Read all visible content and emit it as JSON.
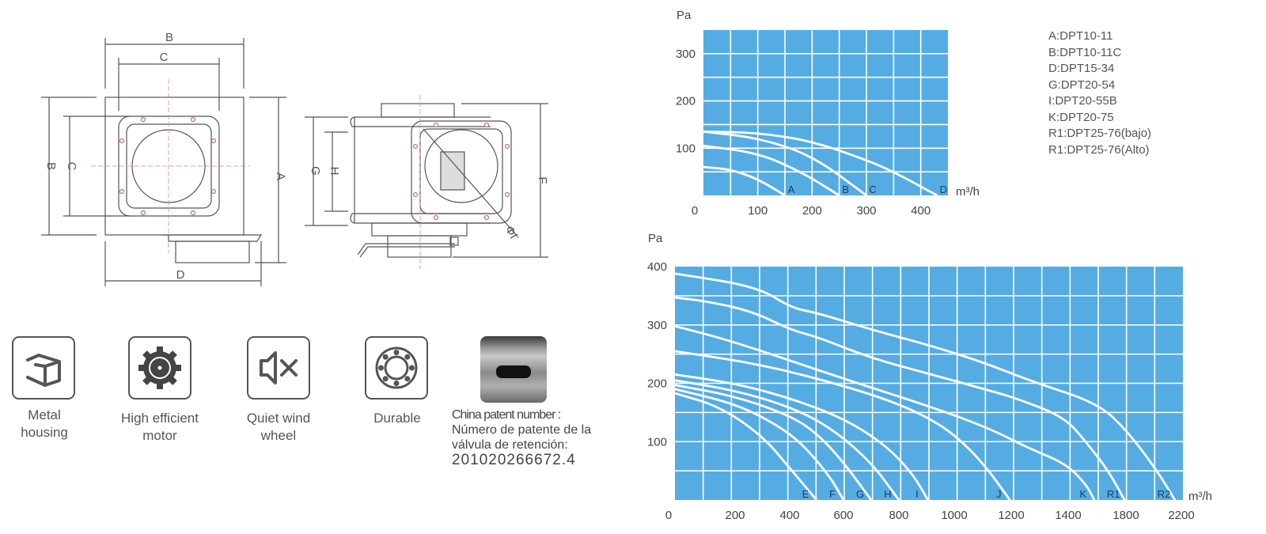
{
  "drawings": {
    "front_view": {
      "dims": {
        "top_outer": "B",
        "top_inner": "C",
        "left_outer": "B",
        "left_inner": "C",
        "right": "A",
        "bottom": "D"
      }
    },
    "side_view": {
      "dims": {
        "left_outer": "G",
        "left_inner": "H",
        "right": "F",
        "diameter": "ΦI"
      }
    }
  },
  "features": [
    {
      "label_lines": [
        "Metal",
        "housing"
      ],
      "icon": "box-icon"
    },
    {
      "label_lines": [
        "High efficient",
        "motor"
      ],
      "icon": "gear-icon"
    },
    {
      "label_lines": [
        "Quiet wind",
        "wheel"
      ],
      "icon": "speaker-mute-icon"
    },
    {
      "label_lines": [
        "Durable"
      ],
      "icon": "bearing-icon"
    }
  ],
  "patent": {
    "title": "China patent number :",
    "line1": "Número de patente de la",
    "line2": "válvula de retención:",
    "number": "201020266672.4"
  },
  "legend": [
    "A:DPT10-11",
    "B:DPT10-11C",
    "D:DPT15-34",
    "G:DPT20-54",
    "I:DPT20-55B",
    "K:DPT20-75",
    "R1:DPT25-76(bajo)",
    "R1:DPT25-76(Alto)"
  ],
  "colors": {
    "plot_bg": "#55ace2",
    "grid": "#ffffff",
    "curve": "#ffffff"
  },
  "chart_data": [
    {
      "type": "line",
      "ylabel": "Pa",
      "xlabel": "m³/h",
      "xlim": [
        0,
        450
      ],
      "ylim": [
        0,
        350
      ],
      "xticks": [
        0,
        100,
        200,
        300,
        400
      ],
      "yticks": [
        100,
        200,
        300
      ],
      "grid": true,
      "series": [
        {
          "name": "A",
          "points": [
            [
              0,
              60
            ],
            [
              50,
              55
            ],
            [
              100,
              35
            ],
            [
              150,
              0
            ]
          ]
        },
        {
          "name": "B",
          "points": [
            [
              0,
              105
            ],
            [
              100,
              90
            ],
            [
              180,
              50
            ],
            [
              250,
              0
            ]
          ]
        },
        {
          "name": "C",
          "points": [
            [
              0,
              135
            ],
            [
              100,
              122
            ],
            [
              200,
              85
            ],
            [
              300,
              0
            ]
          ]
        },
        {
          "name": "D",
          "points": [
            [
              0,
              135
            ],
            [
              100,
              133
            ],
            [
              200,
              115
            ],
            [
              300,
              75
            ],
            [
              350,
              50
            ],
            [
              430,
              0
            ]
          ]
        }
      ]
    },
    {
      "type": "line",
      "ylabel": "Pa",
      "xlabel": "m³/h",
      "xlim": [
        0,
        2250
      ],
      "ylim": [
        0,
        400
      ],
      "xticks": [
        0,
        200,
        400,
        600,
        800,
        1000,
        1200,
        1400,
        1800,
        2200
      ],
      "yticks": [
        100,
        200,
        300,
        400
      ],
      "grid": true,
      "series": [
        {
          "name": "E",
          "points": [
            [
              0,
              183
            ],
            [
              150,
              160
            ],
            [
              300,
              110
            ],
            [
              400,
              55
            ],
            [
              500,
              0
            ]
          ]
        },
        {
          "name": "F",
          "points": [
            [
              0,
              190
            ],
            [
              200,
              165
            ],
            [
              350,
              130
            ],
            [
              450,
              95
            ],
            [
              550,
              40
            ],
            [
              600,
              0
            ]
          ]
        },
        {
          "name": "G",
          "points": [
            [
              0,
              197
            ],
            [
              200,
              178
            ],
            [
              400,
              145
            ],
            [
              500,
              115
            ],
            [
              600,
              65
            ],
            [
              700,
              0
            ]
          ]
        },
        {
          "name": "H",
          "points": [
            [
              0,
              205
            ],
            [
              200,
              188
            ],
            [
              400,
              160
            ],
            [
              550,
              125
            ],
            [
              700,
              65
            ],
            [
              800,
              0
            ]
          ]
        },
        {
          "name": "I",
          "points": [
            [
              0,
              215
            ],
            [
              200,
              200
            ],
            [
              400,
              175
            ],
            [
              600,
              140
            ],
            [
              750,
              95
            ],
            [
              850,
              45
            ],
            [
              905,
              0
            ]
          ]
        },
        {
          "name": "J",
          "points": [
            [
              0,
              255
            ],
            [
              300,
              232
            ],
            [
              600,
              196
            ],
            [
              800,
              165
            ],
            [
              950,
              130
            ],
            [
              1050,
              90
            ],
            [
              1130,
              45
            ],
            [
              1195,
              0
            ]
          ]
        },
        {
          "name": "K",
          "points": [
            [
              0,
              298
            ],
            [
              193,
              272
            ],
            [
              593,
              209
            ],
            [
              927,
              158
            ],
            [
              1127,
              122
            ],
            [
              1260,
              89
            ],
            [
              1393,
              62
            ],
            [
              1530,
              25
            ],
            [
              1580,
              0
            ]
          ]
        },
        {
          "name": "R1",
          "points": [
            [
              0,
              347
            ],
            [
              100,
              341
            ],
            [
              260,
              324
            ],
            [
              407,
              291
            ],
            [
              500,
              280
            ],
            [
              700,
              243
            ],
            [
              927,
              214
            ],
            [
              1113,
              189
            ],
            [
              1220,
              174
            ],
            [
              1387,
              142
            ],
            [
              1529,
              98
            ],
            [
              1684,
              48
            ],
            [
              1790,
              0
            ]
          ]
        },
        {
          "name": "R2",
          "points": [
            [
              0,
              388
            ],
            [
              280,
              366
            ],
            [
              407,
              329
            ],
            [
              500,
              321
            ],
            [
              700,
              292
            ],
            [
              927,
              263
            ],
            [
              1113,
              234
            ],
            [
              1273,
              203
            ],
            [
              1606,
              166
            ],
            [
              1815,
              117
            ],
            [
              2031,
              48
            ],
            [
              2154,
              0
            ]
          ]
        }
      ]
    }
  ]
}
